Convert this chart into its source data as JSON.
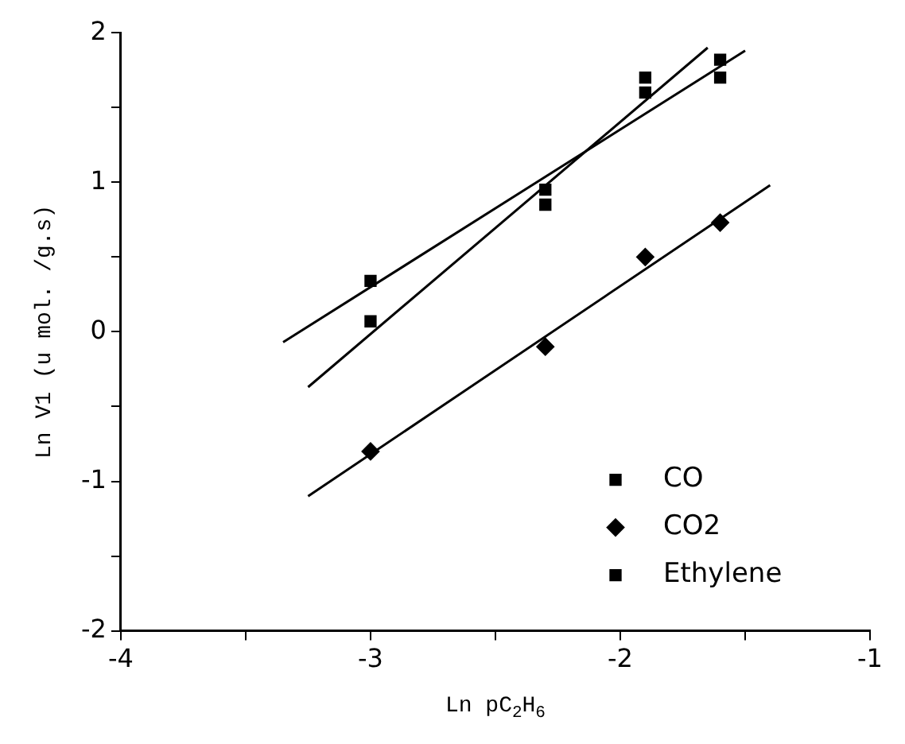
{
  "chart_data": {
    "type": "scatter",
    "xlabel": "Ln pC$_{2}$H$_{6}$",
    "ylabel": "Ln V1 (u mol. /g.s)",
    "xlim": [
      -4,
      -1
    ],
    "ylim": [
      -2,
      2
    ],
    "xticks": [
      -4,
      {
        "value": -3.5,
        "label": null
      },
      -3,
      {
        "value": -2.5,
        "label": null
      },
      -2,
      {
        "value": -1.5,
        "label": null
      },
      -1
    ],
    "yticks": [
      -2,
      {
        "value": -1.5,
        "label": null
      },
      -1,
      {
        "value": -0.5,
        "label": null
      },
      0,
      {
        "value": 0.5,
        "label": null
      },
      1,
      {
        "value": 1.5,
        "label": null
      },
      2
    ],
    "grid": false,
    "legend": "bottom right",
    "series": [
      {
        "name": "CO",
        "color": "#000000",
        "marker": "square",
        "x": [
          -3,
          -2.3,
          -1.9,
          -1.6
        ],
        "values": [
          0.07,
          0.85,
          1.7,
          1.82
        ]
      },
      {
        "name": "CO2",
        "color": "#000000",
        "marker": "diamond",
        "x": [
          -3,
          -2.3,
          -1.9,
          -1.6
        ],
        "values": [
          -0.8,
          -0.1,
          0.5,
          0.73
        ]
      },
      {
        "name": "Ethylene",
        "color": "#000000",
        "marker": "square",
        "x": [
          -3,
          -2.3,
          -1.9,
          -1.6
        ],
        "values": [
          0.34,
          0.95,
          1.6,
          1.7
        ]
      },
      {
        "type": "line",
        "color": "#000000",
        "marker": "none",
        "x": [
          -3.25,
          -1.65
        ],
        "values": [
          -0.37,
          1.9
        ]
      },
      {
        "type": "line",
        "color": "#000000",
        "marker": "none",
        "x": [
          -3.35,
          -1.5
        ],
        "values": [
          -0.07,
          1.88
        ]
      },
      {
        "type": "line",
        "color": "#000000",
        "marker": "none",
        "x": [
          -3.25,
          -1.4
        ],
        "values": [
          -1.1,
          0.98
        ]
      }
    ]
  }
}
